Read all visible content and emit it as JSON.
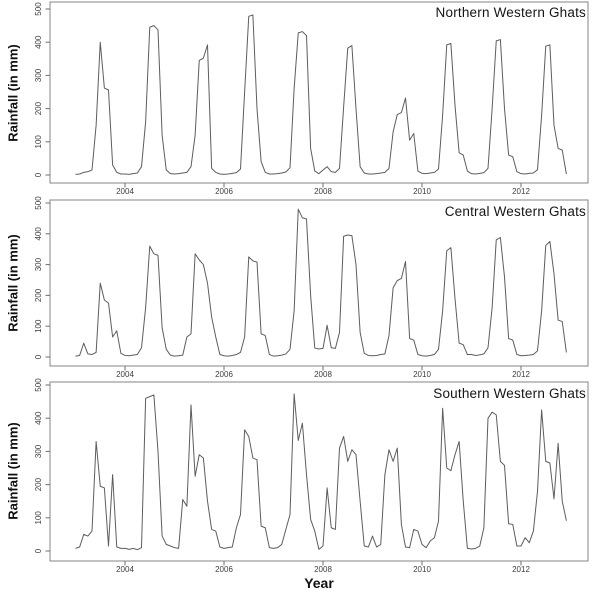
{
  "figure": {
    "background": "#ffffff",
    "box_color": "#858585",
    "tick_color": "#6f6f6f",
    "tick_label_color": "#3d3d3d",
    "title_color": "#151515"
  },
  "chart_data": [
    {
      "type": "line",
      "title": "Northern Western Ghats",
      "ylabel": "Rainfall (in mm)",
      "xlabel": "",
      "ylim": [
        0,
        500
      ],
      "x_range_years": [
        2003,
        2013
      ],
      "points_per_year": 12,
      "series_start": "Jan 2003",
      "x_ticks": [
        2004,
        2006,
        2008,
        2010,
        2012
      ],
      "y_ticks": [
        0,
        100,
        200,
        300,
        400,
        500
      ],
      "grid": false,
      "legend": "none",
      "line_color": "#5d5d5d",
      "values": [
        2,
        3,
        8,
        10,
        15,
        150,
        400,
        262,
        256,
        30,
        8,
        3,
        3,
        2,
        4,
        6,
        25,
        160,
        445,
        450,
        437,
        120,
        15,
        4,
        3,
        4,
        6,
        8,
        25,
        120,
        345,
        352,
        392,
        20,
        8,
        3,
        2,
        3,
        5,
        7,
        18,
        250,
        478,
        482,
        200,
        40,
        8,
        3,
        3,
        4,
        6,
        9,
        22,
        260,
        428,
        432,
        420,
        80,
        12,
        4,
        15,
        25,
        10,
        8,
        20,
        205,
        382,
        390,
        200,
        25,
        6,
        3,
        3,
        4,
        6,
        8,
        20,
        130,
        182,
        188,
        232,
        105,
        125,
        12,
        5,
        4,
        6,
        8,
        18,
        180,
        392,
        396,
        210,
        67,
        60,
        12,
        4,
        3,
        5,
        7,
        20,
        200,
        404,
        408,
        200,
        60,
        55,
        10,
        4,
        3,
        5,
        6,
        16,
        180,
        388,
        392,
        150,
        80,
        75,
        3
      ]
    },
    {
      "type": "line",
      "title": "Central Western Ghats",
      "ylabel": "Rainfall (in mm)",
      "xlabel": "",
      "ylim": [
        0,
        500
      ],
      "x_range_years": [
        2003,
        2013
      ],
      "points_per_year": 12,
      "series_start": "Jan 2003",
      "x_ticks": [
        2004,
        2006,
        2008,
        2010,
        2012
      ],
      "y_ticks": [
        0,
        100,
        200,
        300,
        400,
        500
      ],
      "grid": false,
      "legend": "none",
      "line_color": "#5d5d5d",
      "values": [
        3,
        5,
        45,
        10,
        8,
        15,
        240,
        185,
        175,
        65,
        85,
        12,
        5,
        4,
        6,
        8,
        30,
        160,
        360,
        335,
        330,
        95,
        25,
        6,
        3,
        4,
        6,
        65,
        75,
        335,
        315,
        300,
        240,
        130,
        65,
        8,
        4,
        3,
        5,
        8,
        15,
        65,
        325,
        312,
        308,
        75,
        70,
        8,
        3,
        4,
        6,
        10,
        25,
        150,
        480,
        452,
        448,
        200,
        29,
        26,
        28,
        103,
        30,
        28,
        80,
        392,
        396,
        394,
        300,
        80,
        12,
        5,
        4,
        5,
        8,
        10,
        70,
        225,
        248,
        255,
        310,
        60,
        55,
        8,
        4,
        3,
        5,
        8,
        25,
        150,
        345,
        355,
        190,
        45,
        40,
        8,
        8,
        5,
        7,
        10,
        30,
        160,
        380,
        388,
        260,
        60,
        55,
        8,
        4,
        5,
        6,
        8,
        20,
        150,
        362,
        375,
        270,
        120,
        115,
        15
      ]
    },
    {
      "type": "line",
      "title": "Southern Western Ghats",
      "ylabel": "Rainfall (in mm)",
      "xlabel": "Year",
      "ylim": [
        0,
        500
      ],
      "x_range_years": [
        2003,
        2013
      ],
      "points_per_year": 12,
      "series_start": "Jan 2003",
      "x_ticks": [
        2004,
        2006,
        2008,
        2010,
        2012
      ],
      "y_ticks": [
        0,
        100,
        200,
        300,
        400,
        500
      ],
      "grid": false,
      "legend": "none",
      "line_color": "#5d5d5d",
      "values": [
        8,
        12,
        50,
        45,
        60,
        330,
        195,
        190,
        15,
        230,
        12,
        8,
        8,
        5,
        8,
        4,
        10,
        460,
        465,
        470,
        300,
        45,
        20,
        15,
        10,
        8,
        155,
        135,
        440,
        225,
        290,
        280,
        150,
        65,
        60,
        12,
        8,
        10,
        12,
        70,
        110,
        365,
        345,
        280,
        275,
        75,
        70,
        10,
        8,
        10,
        20,
        65,
        110,
        473,
        333,
        385,
        230,
        95,
        60,
        5,
        15,
        190,
        70,
        65,
        310,
        345,
        270,
        305,
        290,
        150,
        15,
        12,
        45,
        12,
        20,
        230,
        305,
        270,
        310,
        80,
        12,
        10,
        65,
        60,
        20,
        10,
        30,
        40,
        90,
        430,
        250,
        242,
        290,
        330,
        150,
        8,
        6,
        8,
        15,
        70,
        400,
        418,
        410,
        270,
        258,
        82,
        80,
        15,
        15,
        40,
        25,
        60,
        180,
        425,
        270,
        265,
        157,
        324,
        150,
        91
      ]
    }
  ]
}
